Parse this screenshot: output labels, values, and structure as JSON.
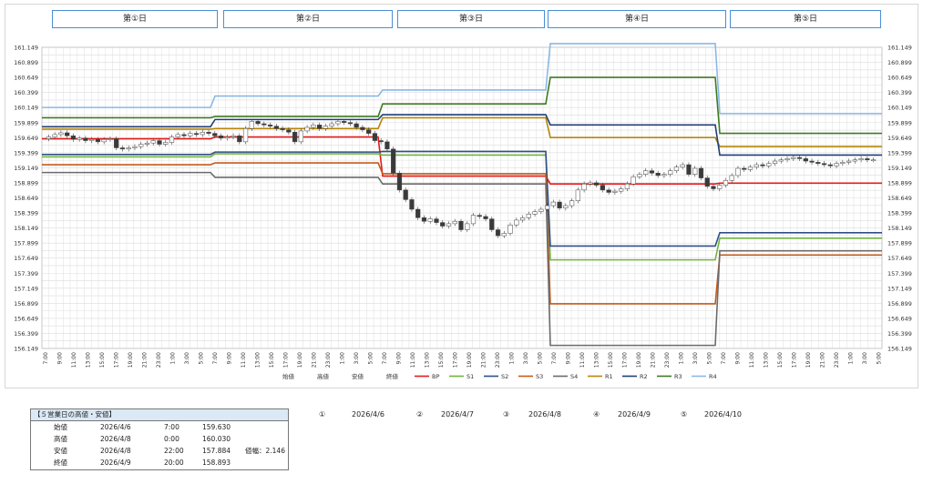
{
  "day_headers": [
    "第①日",
    "第②日",
    "第③日",
    "第④日",
    "第⑤日"
  ],
  "chart_data": {
    "type": "candlestick",
    "y_ticks": [
      "161.149",
      "160.899",
      "160.649",
      "160.399",
      "160.149",
      "159.899",
      "159.649",
      "159.399",
      "159.149",
      "158.899",
      "158.649",
      "158.399",
      "158.149",
      "157.899",
      "157.649",
      "157.399",
      "157.149",
      "156.899",
      "156.649",
      "156.399",
      "156.149"
    ],
    "ylim": [
      156.149,
      161.149
    ],
    "x_labels": [
      "7:00",
      "9:00",
      "11:00",
      "13:00",
      "15:00",
      "17:00",
      "19:00",
      "21:00",
      "23:00",
      "1:00",
      "3:00",
      "5:00",
      "7:00",
      "9:00",
      "11:00",
      "13:00",
      "15:00",
      "17:00",
      "19:00",
      "21:00",
      "23:00",
      "1:00",
      "3:00",
      "5:00",
      "7:00",
      "9:00",
      "11:00",
      "13:00",
      "15:00",
      "17:00",
      "19:00",
      "21:00",
      "23:00",
      "1:00",
      "3:00",
      "5:00",
      "7:00",
      "9:00",
      "11:00",
      "13:00",
      "15:00",
      "17:00",
      "19:00",
      "21:00",
      "23:00",
      "1:00",
      "3:00",
      "5:00",
      "7:00",
      "9:00",
      "11:00",
      "13:00",
      "15:00",
      "17:00",
      "19:00",
      "21:00",
      "23:00",
      "1:00",
      "3:00",
      "5:00"
    ],
    "closes": [
      159.66,
      159.7,
      159.73,
      159.68,
      159.62,
      159.64,
      159.6,
      159.62,
      159.58,
      159.62,
      159.63,
      159.48,
      159.46,
      159.48,
      159.5,
      159.54,
      159.56,
      159.6,
      159.54,
      159.57,
      159.66,
      159.7,
      159.68,
      159.72,
      159.7,
      159.74,
      159.72,
      159.68,
      159.64,
      159.66,
      159.68,
      159.58,
      159.8,
      159.92,
      159.88,
      159.86,
      159.84,
      159.8,
      159.78,
      159.74,
      159.58,
      159.76,
      159.82,
      159.86,
      159.8,
      159.84,
      159.88,
      159.92,
      159.9,
      159.88,
      159.82,
      159.78,
      159.72,
      159.6,
      159.58,
      159.46,
      159.06,
      158.78,
      158.62,
      158.46,
      158.32,
      158.26,
      158.3,
      158.24,
      158.18,
      158.22,
      158.26,
      158.12,
      158.22,
      158.36,
      158.34,
      158.3,
      158.12,
      158.02,
      158.06,
      158.2,
      158.28,
      158.32,
      158.38,
      158.42,
      158.46,
      158.52,
      158.58,
      158.48,
      158.52,
      158.6,
      158.78,
      158.88,
      158.9,
      158.86,
      158.78,
      158.74,
      158.76,
      158.8,
      158.88,
      159.0,
      159.04,
      159.1,
      159.06,
      159.02,
      159.04,
      159.1,
      159.16,
      159.2,
      159.04,
      159.14,
      158.98,
      158.84,
      158.8,
      158.86,
      158.94,
      159.02,
      159.14,
      159.12,
      159.16,
      159.2,
      159.18,
      159.22,
      159.26,
      159.28,
      159.3,
      159.32,
      159.3,
      159.26,
      159.24,
      159.22,
      159.2,
      159.18,
      159.22,
      159.24,
      159.26,
      159.28,
      159.3,
      159.28,
      159.28
    ],
    "lines": [
      {
        "name": "BP",
        "color": "#e41b1b",
        "values": [
          159.63,
          159.66,
          159.01,
          158.88,
          158.893
        ]
      },
      {
        "name": "S1",
        "color": "#70b53c",
        "values": [
          159.33,
          159.38,
          159.36,
          157.62,
          157.98
        ]
      },
      {
        "name": "S2",
        "color": "#2e4f8a",
        "values": [
          159.37,
          159.41,
          159.42,
          157.85,
          158.07
        ]
      },
      {
        "name": "S3",
        "color": "#c55a1c",
        "values": [
          159.2,
          159.23,
          159.05,
          156.89,
          157.7
        ]
      },
      {
        "name": "S4",
        "color": "#6b6b6b",
        "values": [
          159.07,
          158.99,
          158.88,
          156.2,
          157.77
        ]
      },
      {
        "name": "R1",
        "color": "#b8860b",
        "values": [
          159.79,
          159.8,
          159.98,
          159.65,
          159.5
        ]
      },
      {
        "name": "R2",
        "color": "#1f3f78",
        "values": [
          159.83,
          159.95,
          160.03,
          159.86,
          159.36
        ]
      },
      {
        "name": "R3",
        "color": "#3e7a22",
        "values": [
          159.98,
          160.0,
          160.21,
          160.65,
          159.72
        ]
      },
      {
        "name": "R4",
        "color": "#8ab8e6",
        "values": [
          160.15,
          160.34,
          160.44,
          161.21,
          160.05
        ]
      }
    ],
    "candle_legend": [
      "始値",
      "高値",
      "安値",
      "終値"
    ]
  },
  "summary": {
    "title": "【５営業日の高値・安値】",
    "rows": [
      {
        "label": "始値",
        "date": "2026/4/6",
        "time": "7:00",
        "value": "159.630"
      },
      {
        "label": "高値",
        "date": "2026/4/8",
        "time": "0:00",
        "value": "160.030"
      },
      {
        "label": "安値",
        "date": "2026/4/8",
        "time": "22:00",
        "value": "157.884",
        "extra": "値幅：2.146"
      },
      {
        "label": "終値",
        "date": "2026/4/9",
        "time": "20:00",
        "value": "158.893"
      }
    ]
  },
  "dates": [
    {
      "mark": "①",
      "date": "2026/4/6"
    },
    {
      "mark": "②",
      "date": "2026/4/7"
    },
    {
      "mark": "③",
      "date": "2026/4/8"
    },
    {
      "mark": "④",
      "date": "2026/4/9"
    },
    {
      "mark": "⑤",
      "date": "2026/4/10"
    }
  ]
}
